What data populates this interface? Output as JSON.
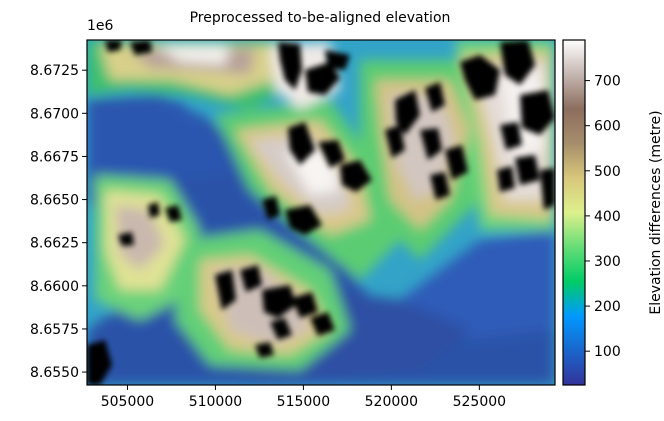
{
  "chart_data": {
    "type": "heatmap",
    "title": "Preprocessed to-be-aligned elevation",
    "x_ticks": [
      "505000",
      "510000",
      "515000",
      "520000",
      "525000"
    ],
    "x_tick_values": [
      505000,
      510000,
      515000,
      520000,
      525000
    ],
    "xlim": [
      502700,
      529300
    ],
    "y_ticks": [
      "8.6550",
      "8.6575",
      "8.6600",
      "8.6625",
      "8.6650",
      "8.6675",
      "8.6700",
      "8.6725"
    ],
    "y_tick_values": [
      8.655,
      8.6575,
      8.66,
      8.6625,
      8.665,
      8.6675,
      8.67,
      8.6725
    ],
    "ylim": [
      8.65425,
      8.67425
    ],
    "y_offset_label": "1e6",
    "colorbar": {
      "label": "Elevation differences (metre)",
      "ticks": [
        "100",
        "200",
        "300",
        "400",
        "500",
        "600",
        "700"
      ],
      "tick_values": [
        100,
        200,
        300,
        400,
        500,
        600,
        700
      ],
      "range": [
        25,
        790
      ],
      "colormap": "terrain"
    },
    "nodata_color": "#000000"
  }
}
